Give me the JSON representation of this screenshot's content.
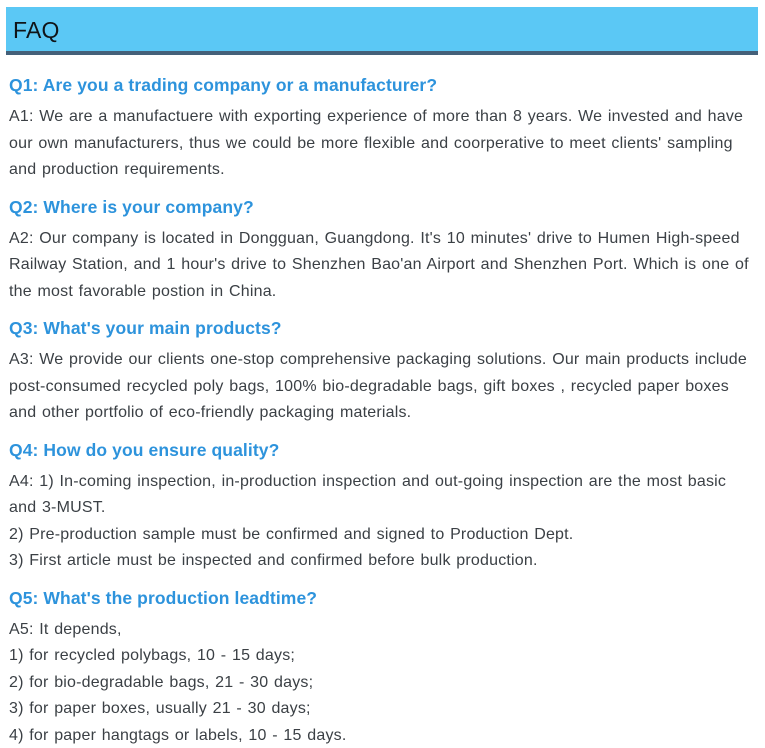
{
  "header": {
    "title": "FAQ"
  },
  "faq": {
    "items": [
      {
        "question": "Q1: Are you a trading company or a manufacturer?",
        "answers": [
          "A1: We are a manufactuere with exporting experience of more than 8 years. We invested and have our own manufacturers, thus we could be more flexible and coorperative to meet clients' sampling and production requirements."
        ]
      },
      {
        "question": "Q2: Where is your company?",
        "answers": [
          "A2: Our company is located in Dongguan, Guangdong. It's 10 minutes' drive to Humen High-speed Railway Station, and 1 hour's drive to Shenzhen Bao'an Airport and Shenzhen Port. Which is one of the most favorable postion in China."
        ]
      },
      {
        "question": "Q3: What's your main products?",
        "answers": [
          "A3: We provide our clients one-stop comprehensive packaging solutions. Our main products include post-consumed recycled poly bags, 100% bio-degradable bags, gift boxes , recycled paper boxes and other portfolio of eco-friendly packaging materials."
        ]
      },
      {
        "question": "Q4: How do you ensure quality?",
        "answers": [
          "A4: 1) In-coming inspection, in-production inspection and out-going inspection are the most basic and 3-MUST.",
          "2) Pre-production sample must be confirmed and signed to Production Dept.",
          "3) First article must be inspected and confirmed before bulk production."
        ]
      },
      {
        "question": "Q5: What's the production leadtime?",
        "answers": [
          "A5: It depends,",
          "1) for recycled polybags, 10 - 15 days;",
          "2) for bio-degradable bags, 21 - 30 days;",
          "3) for paper boxes, usually 21 - 30 days;",
          "4) for paper hangtags or labels, 10 - 15 days."
        ]
      }
    ]
  },
  "colors": {
    "page_bg": "#ffffff",
    "header_bg": "#5bc8f5",
    "header_border": "#446079",
    "header_text": "#101418",
    "question_text": "#2d93dc",
    "body_text": "#3b4045"
  }
}
